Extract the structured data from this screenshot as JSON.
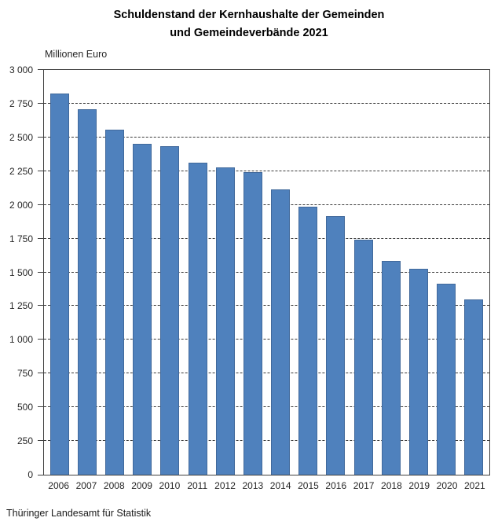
{
  "title": {
    "line1": "Schuldenstand der Kernhaushalte der Gemeinden",
    "line2": "und Gemeindeverbände 2021"
  },
  "unit_label": "Millionen Euro",
  "source": "Thüringer Landesamt für Statistik",
  "colors": {
    "bar": "#4f81bd",
    "bar_border": "#41699b",
    "axis": "#404040",
    "gridline": "#3a3a3a",
    "text": "#262626"
  },
  "chart_data": {
    "type": "bar",
    "title": "Schuldenstand der Kernhaushalte der Gemeinden und Gemeindeverbände 2021",
    "xlabel": "",
    "ylabel": "Millionen Euro",
    "ylim": [
      0,
      3000
    ],
    "ytick_step": 250,
    "grid": true,
    "legend": false,
    "categories": [
      "2006",
      "2007",
      "2008",
      "2009",
      "2010",
      "2011",
      "2012",
      "2013",
      "2014",
      "2015",
      "2016",
      "2017",
      "2018",
      "2019",
      "2020",
      "2021"
    ],
    "values": [
      2825,
      2710,
      2555,
      2450,
      2435,
      2315,
      2275,
      2240,
      2115,
      1985,
      1915,
      1740,
      1585,
      1525,
      1415,
      1300
    ],
    "yticks": [
      {
        "value": 0,
        "label": "0"
      },
      {
        "value": 250,
        "label": "250"
      },
      {
        "value": 500,
        "label": "500"
      },
      {
        "value": 750,
        "label": "750"
      },
      {
        "value": 1000,
        "label": "1 000"
      },
      {
        "value": 1250,
        "label": "1 250"
      },
      {
        "value": 1500,
        "label": "1 500"
      },
      {
        "value": 1750,
        "label": "1 750"
      },
      {
        "value": 2000,
        "label": "2 000"
      },
      {
        "value": 2250,
        "label": "2 250"
      },
      {
        "value": 2500,
        "label": "2 500"
      },
      {
        "value": 2750,
        "label": "2 750"
      },
      {
        "value": 3000,
        "label": "3 000"
      }
    ]
  }
}
